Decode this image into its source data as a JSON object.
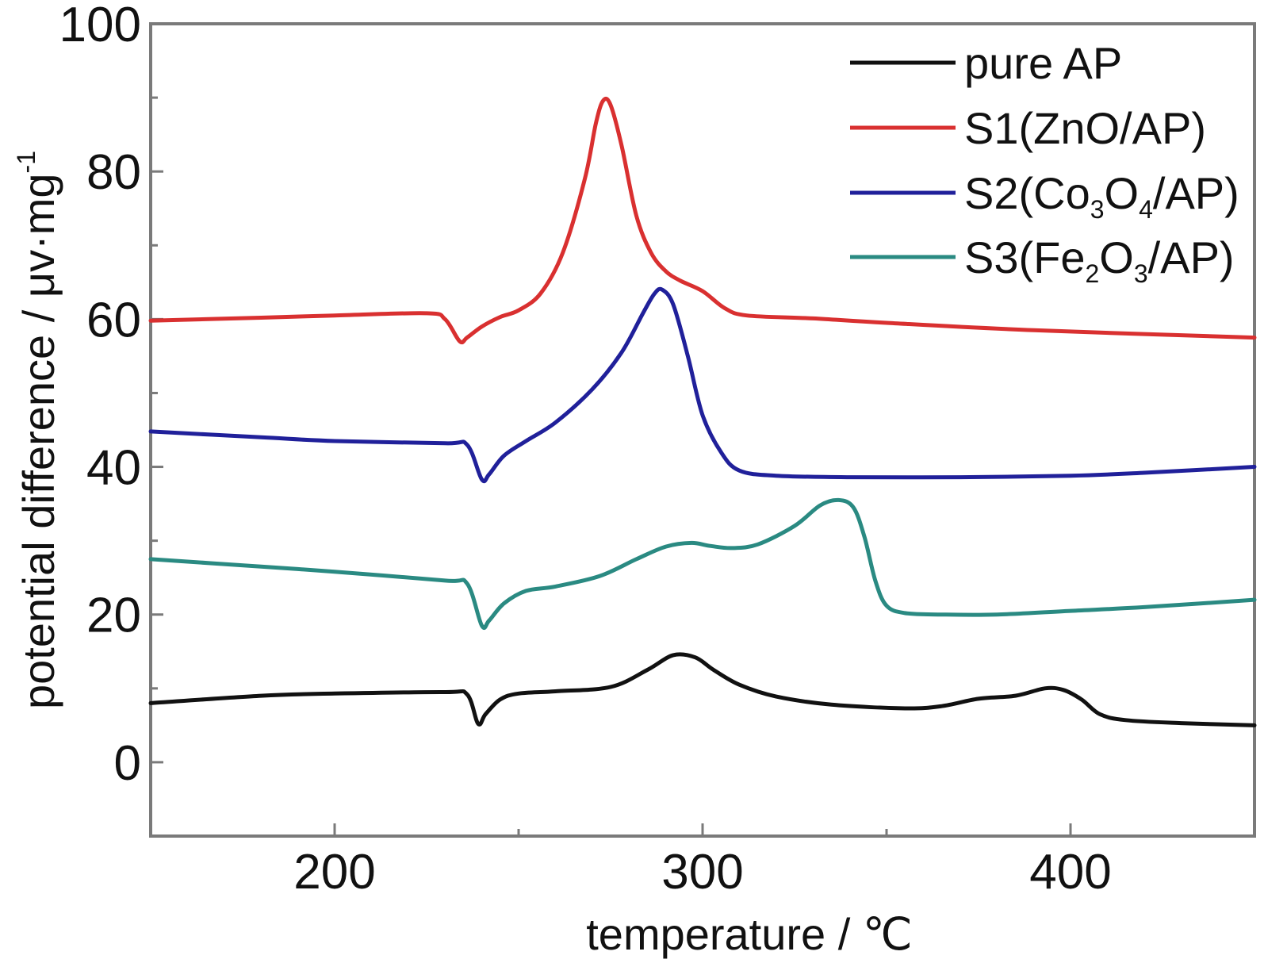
{
  "chart_data": {
    "type": "line",
    "xlabel": "temperature / ℃",
    "ylabel": "potential difference / μv·mg",
    "ylabel_sup": "-1",
    "xlim": [
      150,
      450
    ],
    "ylim": [
      -10,
      100
    ],
    "x_ticks": [
      200,
      300,
      400
    ],
    "x_minor_ticks": [
      250,
      350
    ],
    "y_ticks": [
      0,
      20,
      40,
      60,
      80,
      100
    ],
    "y_minor_ticks": [
      -10,
      10,
      30,
      50,
      70,
      90
    ],
    "grid": false,
    "legend_position": "top-right",
    "series": [
      {
        "name": "pure AP",
        "name_parts": [
          [
            "pure AP",
            ""
          ]
        ],
        "color": "#111111",
        "x": [
          150,
          180,
          200,
          230,
          236,
          239,
          241,
          245,
          250,
          260,
          275,
          285,
          292,
          298,
          303,
          310,
          320,
          335,
          355,
          365,
          375,
          385,
          393,
          398,
          403,
          408,
          415,
          430,
          450
        ],
        "y": [
          8,
          9,
          9.3,
          9.5,
          9.2,
          5.2,
          6.5,
          8.5,
          9.3,
          9.6,
          10.2,
          12.5,
          14.5,
          14.2,
          12.5,
          10.5,
          8.9,
          7.8,
          7.3,
          7.6,
          8.6,
          9,
          10,
          9.8,
          8.5,
          6.5,
          5.7,
          5.3,
          5
        ]
      },
      {
        "name": "S1(ZnO/AP)",
        "name_parts": [
          [
            "S1(ZnO/AP)",
            ""
          ]
        ],
        "color": "#d93030",
        "x": [
          150,
          180,
          200,
          225,
          230,
          234,
          236,
          240,
          245,
          250,
          256,
          262,
          268,
          271,
          273,
          275,
          278,
          282,
          286,
          290,
          294,
          300,
          306,
          312,
          330,
          350,
          390,
          450
        ],
        "y": [
          59.8,
          60.2,
          60.5,
          60.8,
          60,
          57,
          57.5,
          59,
          60.3,
          61.2,
          63.5,
          69,
          79,
          86.5,
          89.6,
          89,
          83.5,
          74,
          69,
          66.5,
          65.2,
          63.8,
          61.5,
          60.5,
          60.1,
          59.5,
          58.5,
          57.5
        ]
      },
      {
        "name": "S2(Co3O4/AP)",
        "name_parts": [
          [
            "S2(Co",
            ""
          ],
          [
            "3",
            "sub"
          ],
          [
            "O",
            ""
          ],
          [
            "4",
            "sub"
          ],
          [
            "/AP)",
            ""
          ]
        ],
        "color": "#20209a",
        "x": [
          150,
          180,
          200,
          230,
          236,
          240,
          242,
          246,
          252,
          260,
          270,
          278,
          284,
          287,
          289,
          292,
          296,
          300,
          305,
          310,
          320,
          340,
          370,
          400,
          420,
          450
        ],
        "y": [
          44.8,
          44,
          43.5,
          43.2,
          43,
          38.3,
          39,
          41.5,
          43.5,
          46,
          50.5,
          55.5,
          61,
          63.5,
          64,
          62,
          55,
          47,
          42,
          39.5,
          38.8,
          38.6,
          38.6,
          38.8,
          39.2,
          40
        ]
      },
      {
        "name": "S3(Fe2O3/AP)",
        "name_parts": [
          [
            "S3(Fe",
            ""
          ],
          [
            "2",
            "sub"
          ],
          [
            "O",
            ""
          ],
          [
            "3",
            "sub"
          ],
          [
            "/AP)",
            ""
          ]
        ],
        "color": "#2a8a82",
        "x": [
          150,
          180,
          200,
          230,
          236,
          240,
          242,
          246,
          252,
          260,
          272,
          282,
          290,
          297,
          302,
          308,
          315,
          325,
          332,
          337,
          341,
          344,
          347,
          350,
          355,
          365,
          380,
          400,
          420,
          450
        ],
        "y": [
          27.5,
          26.5,
          25.8,
          24.6,
          24.2,
          18.5,
          19.2,
          21.5,
          23.2,
          23.8,
          25.2,
          27.5,
          29.2,
          29.7,
          29.3,
          29,
          29.5,
          32,
          34.8,
          35.5,
          34.5,
          30.5,
          24.5,
          21.2,
          20.2,
          20,
          20,
          20.5,
          21,
          22
        ]
      }
    ]
  }
}
